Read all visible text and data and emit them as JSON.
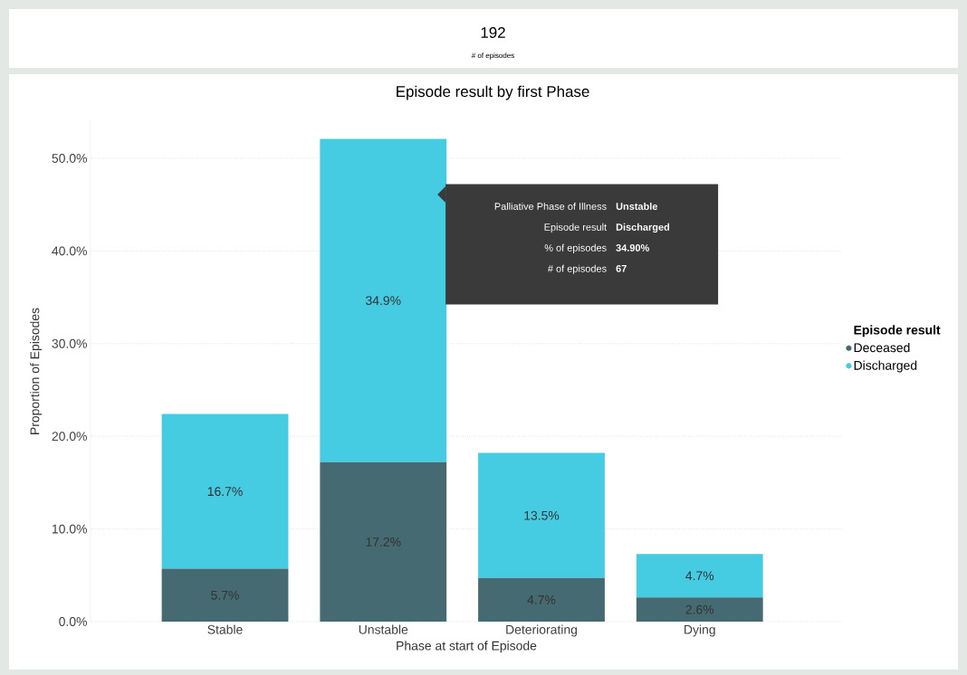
{
  "chart_data": [
    {
      "type": "other",
      "title": "# of episodes",
      "annotations": [
        "192"
      ]
    },
    {
      "type": "bar",
      "stacked": true,
      "title": "Episode result by first Phase",
      "xlabel": "Phase at start of Episode",
      "ylabel": "Proportion of Episodes",
      "legend_title": "Episode result",
      "legend": "right",
      "grid": "y",
      "categories": [
        "Stable",
        "Unstable",
        "Deteriorating",
        "Dying"
      ],
      "series": [
        {
          "name": "Deceased",
          "color": "#456a72",
          "values": [
            5.7,
            17.2,
            4.7,
            2.6
          ],
          "value_labels": [
            "5.7%",
            "17.2%",
            "4.7%",
            "2.6%"
          ]
        },
        {
          "name": "Discharged",
          "color": "#45cce3",
          "values": [
            16.7,
            34.9,
            13.5,
            4.7
          ],
          "value_labels": [
            "16.7%",
            "34.9%",
            "13.5%",
            "4.7%"
          ]
        }
      ],
      "ylim": [
        0,
        54
      ],
      "yticks": [
        {
          "value": 0,
          "label": "0.0%"
        },
        {
          "value": 10,
          "label": "10.0%"
        },
        {
          "value": 20,
          "label": "20.0%"
        },
        {
          "value": 30,
          "label": "30.0%"
        },
        {
          "value": 40,
          "label": "40.0%"
        },
        {
          "value": 50,
          "label": "50.0%"
        }
      ],
      "annotations": [
        "Palliative Phase of Illness",
        "Unstable",
        "Episode result",
        "Discharged",
        "% of episodes",
        "34.90%",
        "# of episodes",
        "67"
      ]
    }
  ]
}
